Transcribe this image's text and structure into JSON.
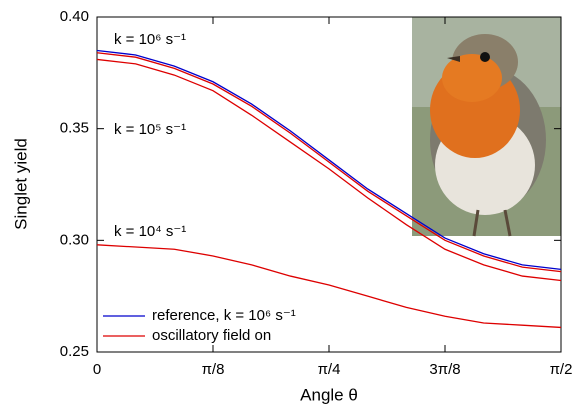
{
  "chart_data": {
    "type": "line",
    "xlabel": "Angle θ",
    "ylabel": "Singlet yield",
    "x": [
      0,
      7.5,
      15,
      22.5,
      30,
      37.5,
      45,
      52.5,
      60,
      67.5,
      75,
      82.5,
      90
    ],
    "series": [
      {
        "name": "reference, k = 10⁶ s⁻¹",
        "color": "#0000cc",
        "values": [
          0.385,
          0.383,
          0.378,
          0.371,
          0.361,
          0.349,
          0.336,
          0.323,
          0.312,
          0.301,
          0.294,
          0.289,
          0.287
        ]
      },
      {
        "name": "oscillatory field on",
        "color": "#dd0000",
        "values": [
          0.384,
          0.382,
          0.377,
          0.37,
          0.36,
          0.348,
          0.335,
          0.322,
          0.311,
          0.3,
          0.293,
          0.288,
          0.286
        ]
      },
      {
        "color": "#dd0000",
        "values": [
          0.381,
          0.379,
          0.374,
          0.367,
          0.356,
          0.344,
          0.332,
          0.319,
          0.307,
          0.296,
          0.289,
          0.284,
          0.282
        ]
      },
      {
        "color": "#dd0000",
        "values": [
          0.298,
          0.297,
          0.296,
          0.293,
          0.289,
          0.284,
          0.28,
          0.275,
          0.27,
          0.266,
          0.263,
          0.262,
          0.261
        ]
      }
    ],
    "annotations": [
      "k = 10⁶ s⁻¹",
      "k = 10⁵ s⁻¹",
      "k = 10⁴ s⁻¹"
    ],
    "xlim": [
      0,
      90
    ],
    "xticks": [
      0,
      {
        "value": 22.5,
        "label": "π/8"
      },
      {
        "value": 45,
        "label": "π/4"
      },
      {
        "value": 67.5,
        "label": "3π/8"
      },
      {
        "value": 90,
        "label": "π/2"
      }
    ],
    "ylim": [
      0.25,
      0.4
    ],
    "yticks": [
      0.25,
      {
        "value": 0.3,
        "label": "0.30"
      },
      0.35,
      {
        "value": 0.4,
        "label": "0.40"
      }
    ],
    "legend": "lower-left"
  }
}
